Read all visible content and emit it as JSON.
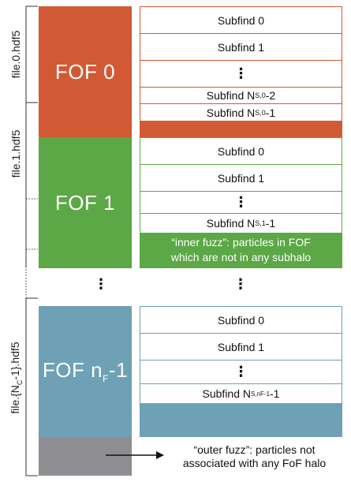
{
  "files": [
    {
      "label": "file.0.hdf5"
    },
    {
      "label": "file.1.hdf5"
    },
    {
      "label": "file.{N",
      "label_sub": "C",
      "label_end": "-1}.hdf5"
    }
  ],
  "fof_groups": [
    {
      "label": "FOF 0",
      "color": "#d15a34"
    },
    {
      "label": "FOF 1",
      "color": "#5ca746"
    },
    {
      "label": "FOF n",
      "sub": "F",
      "end": "-1",
      "color": "#6ea1b5"
    }
  ],
  "outer_color": "#8e8e92",
  "subfinds": {
    "g0": [
      "Subfind 0",
      "Subfind 1",
      "⋮"
    ],
    "g0_last2": {
      "base": "Subfind N",
      "sub": "S,0",
      "end": "-2"
    },
    "g0_last1": {
      "base": "Subfind N",
      "sub": "S,0",
      "end": "-1"
    },
    "g1": [
      "Subfind 0",
      "Subfind 1",
      "⋮"
    ],
    "g1_last": {
      "base": "Subfind N",
      "sub": "S,1",
      "end": "-1"
    },
    "g2": [
      "Subfind 0",
      "Subfind 1",
      "⋮"
    ],
    "g2_last": {
      "base": "Subfind N",
      "sub": "S,nF-1",
      "end": "-1"
    }
  },
  "inner_fuzz": {
    "line1": "“inner fuzz”: particles in FOF",
    "line2": "which are not in any subhalo"
  },
  "outer_fuzz": {
    "line1": "“outer fuzz”: particles not",
    "line2": "associated with any FoF halo"
  },
  "gap_dots": "⋮"
}
